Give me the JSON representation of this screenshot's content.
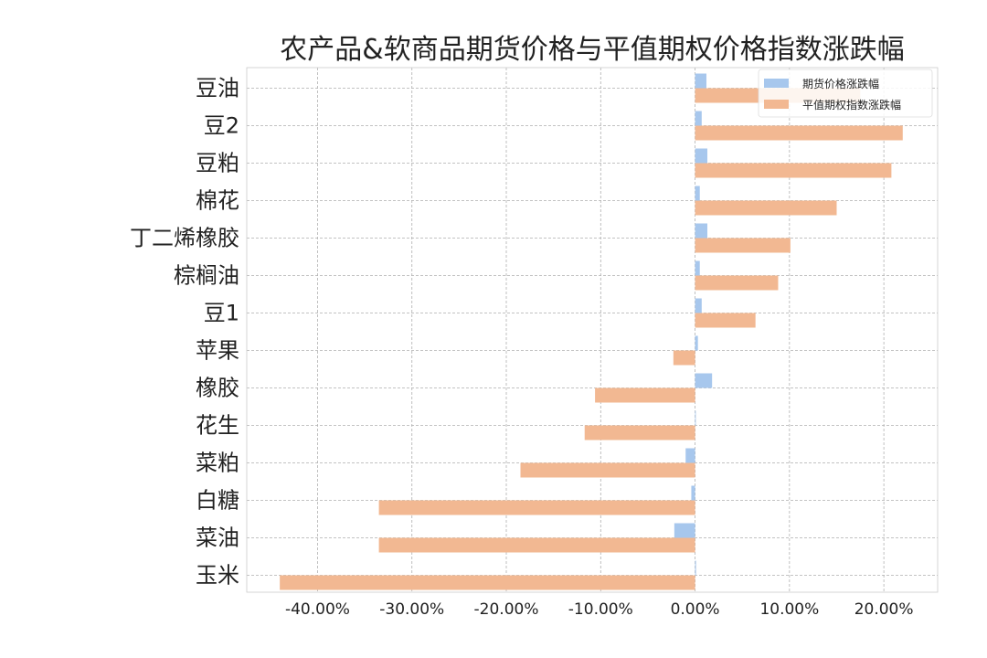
{
  "chart_data": {
    "type": "bar",
    "orientation": "horizontal",
    "title": "农产品&软商品期货价格与平值期权价格指数涨跌幅",
    "categories": [
      "豆油",
      "豆2",
      "豆粕",
      "棉花",
      "丁二烯橡胶",
      "棕榈油",
      "豆1",
      "苹果",
      "橡胶",
      "花生",
      "菜粕",
      "白糖",
      "菜油",
      "玉米"
    ],
    "series": [
      {
        "name": "期货价格涨跌幅",
        "color": "#a7c7ed",
        "values": [
          1.2,
          0.7,
          1.3,
          0.5,
          1.3,
          0.5,
          0.7,
          0.3,
          1.8,
          0.0,
          -1.0,
          -0.4,
          -2.2,
          0.1
        ]
      },
      {
        "name": "平值期权指数涨跌幅",
        "color": "#f2b892",
        "values": [
          17.5,
          22.0,
          20.8,
          15.0,
          10.1,
          8.8,
          6.4,
          -2.3,
          -10.6,
          -11.7,
          -18.5,
          -33.5,
          -33.5,
          -44.0
        ]
      }
    ],
    "xlim": [
      -47.5,
      25.7
    ],
    "xticks": [
      -40,
      -30,
      -20,
      -10,
      0,
      10,
      20
    ],
    "xtick_labels": [
      "-40.00%",
      "-30.00%",
      "-20.00%",
      "-10.00%",
      "0.00%",
      "10.00%",
      "20.00%"
    ],
    "grid": true,
    "legend_position": "top-right"
  }
}
